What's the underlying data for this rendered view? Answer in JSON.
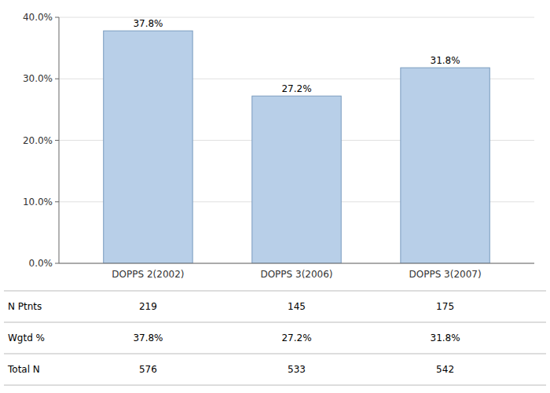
{
  "chart_data": {
    "type": "bar",
    "categories": [
      "DOPPS 2(2002)",
      "DOPPS 3(2006)",
      "DOPPS 3(2007)"
    ],
    "values": [
      37.8,
      27.2,
      31.8
    ],
    "value_labels": [
      "37.8%",
      "27.2%",
      "31.8%"
    ],
    "data_labels": true,
    "color": "#b8cfe8",
    "ylim": [
      0,
      40
    ],
    "yticks": [
      {
        "value": 0,
        "label": "0.0%"
      },
      {
        "value": 10,
        "label": "10.0%"
      },
      {
        "value": 20,
        "label": "20.0%"
      },
      {
        "value": 30,
        "label": "30.0%"
      },
      {
        "value": 40,
        "label": "40.0%"
      }
    ],
    "grid": true,
    "table": {
      "row_labels": [
        "N Ptnts",
        "Wgtd %",
        "Total N"
      ],
      "cells": [
        [
          "219",
          "145",
          "175"
        ],
        [
          "37.8%",
          "27.2%",
          "31.8%"
        ],
        [
          "576",
          "533",
          "542"
        ]
      ]
    }
  }
}
